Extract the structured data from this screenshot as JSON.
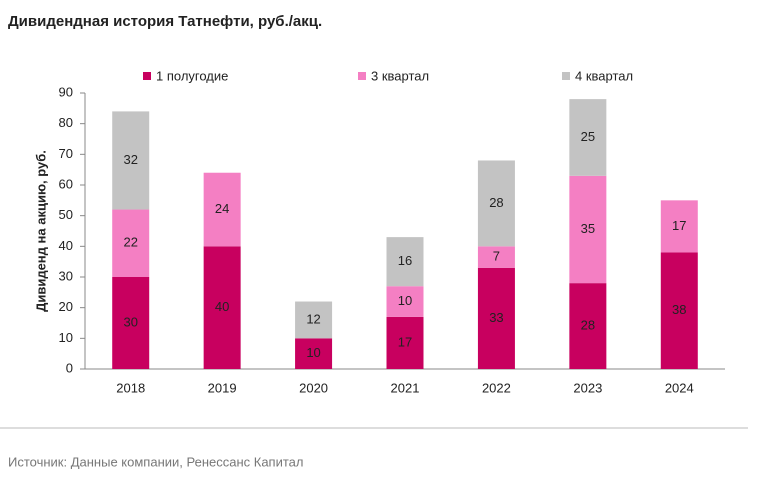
{
  "chart_data": {
    "type": "stacked-bar",
    "title": "Дивидендная история Татнефти, руб./акц.",
    "y_axis_label": "Дивиденд на акцию, руб.",
    "categories": [
      "2018",
      "2019",
      "2020",
      "2021",
      "2022",
      "2023",
      "2024"
    ],
    "series": [
      {
        "name": "1 полугодие",
        "color": "#c8005f",
        "values": [
          30,
          40,
          10,
          17,
          33,
          28,
          38
        ]
      },
      {
        "name": "3 квартал",
        "color": "#f47fc3",
        "values": [
          22,
          24,
          null,
          10,
          7,
          35,
          17
        ]
      },
      {
        "name": "4 квартал",
        "color": "#c3c3c3",
        "values": [
          32,
          null,
          12,
          16,
          28,
          25,
          null
        ]
      }
    ],
    "ylim": [
      0,
      90
    ],
    "yticks": [
      0,
      10,
      20,
      30,
      40,
      50,
      60,
      70,
      80,
      90
    ],
    "source": "Источник: Данные компании, Ренессанс Капитал"
  }
}
